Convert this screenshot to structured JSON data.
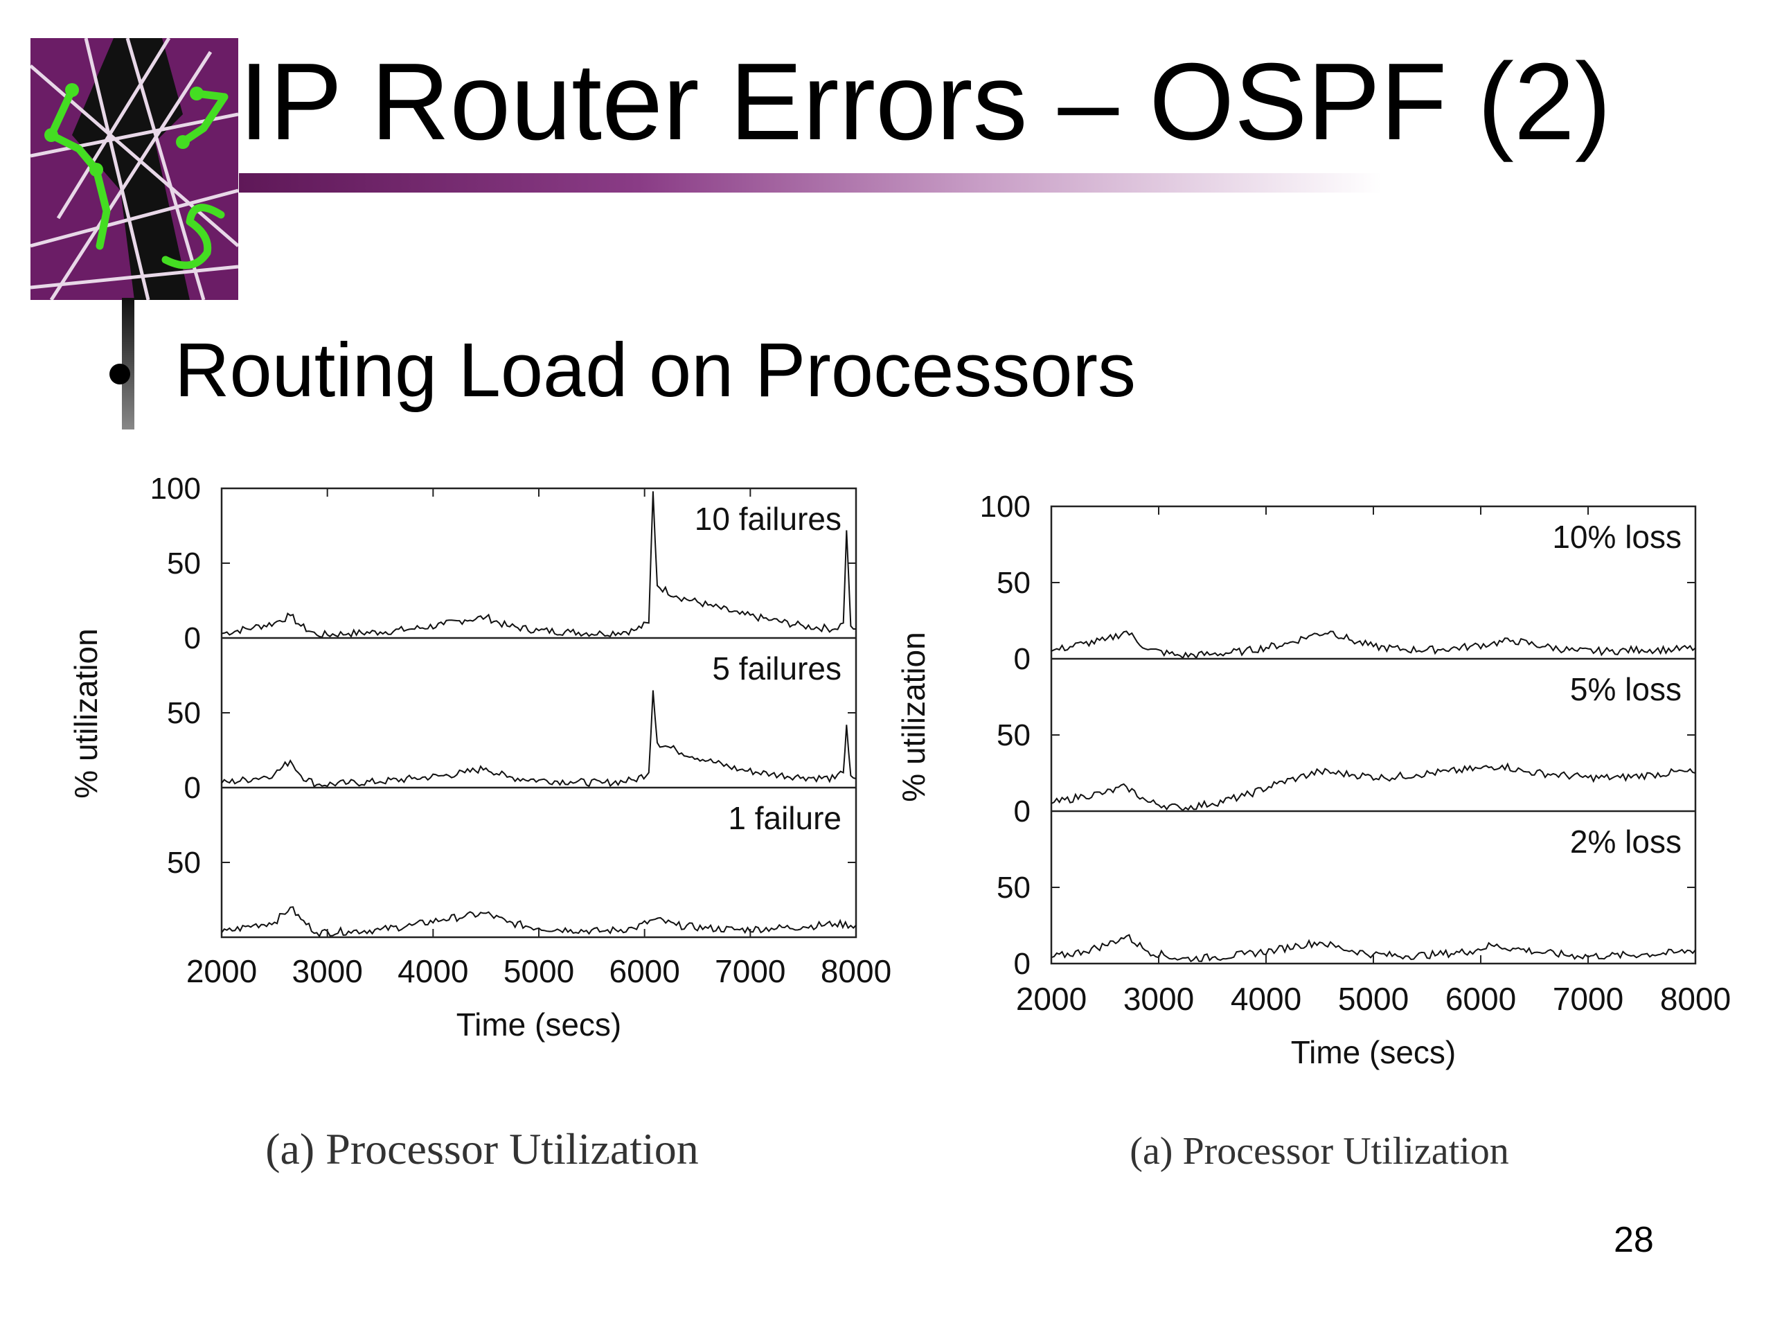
{
  "slide": {
    "title": "IP Router Errors – OSPF (2)",
    "bullet": "Routing Load on Processors",
    "page_number": "28",
    "colors": {
      "accent": "#6b1d66",
      "logo_green": "#44dd22",
      "title_bar": "#5f1858"
    }
  },
  "logo": {
    "icon": "ospf-network-logo-icon"
  },
  "chart_data": [
    {
      "type": "line",
      "caption": "(a) Processor Utilization",
      "xlabel": "Time (secs)",
      "ylabel": "% utilization",
      "xlim": [
        2000,
        8000
      ],
      "xticks": [
        2000,
        3000,
        4000,
        5000,
        6000,
        7000,
        8000
      ],
      "grid": false,
      "panels": [
        {
          "label": "10 failures",
          "ylim": [
            0,
            100
          ],
          "yticks": [
            0,
            50,
            100
          ],
          "x": [
            2000,
            2300,
            2500,
            2650,
            2750,
            2900,
            3200,
            3500,
            3800,
            4100,
            4300,
            4500,
            4700,
            5000,
            5300,
            5600,
            5900,
            6040,
            6080,
            6120,
            6300,
            6600,
            6900,
            7200,
            7500,
            7800,
            7880,
            7910,
            7950,
            8000
          ],
          "y": [
            3,
            7,
            10,
            15,
            8,
            2,
            3,
            4,
            6,
            9,
            12,
            14,
            8,
            5,
            4,
            3,
            5,
            10,
            98,
            35,
            28,
            22,
            16,
            12,
            8,
            6,
            10,
            72,
            8,
            6
          ]
        },
        {
          "label": "5 failures",
          "ylim": [
            0,
            100
          ],
          "yticks": [
            0,
            50
          ],
          "x": [
            2000,
            2300,
            2500,
            2650,
            2750,
            2900,
            3200,
            3500,
            3800,
            4100,
            4300,
            4500,
            4700,
            5000,
            5300,
            5600,
            5900,
            6040,
            6080,
            6120,
            6300,
            6600,
            6900,
            7200,
            7500,
            7800,
            7880,
            7910,
            7950,
            8000
          ],
          "y": [
            3,
            6,
            9,
            18,
            8,
            2,
            3,
            4,
            6,
            8,
            10,
            13,
            7,
            5,
            4,
            3,
            5,
            10,
            65,
            30,
            25,
            18,
            12,
            9,
            7,
            6,
            10,
            42,
            8,
            6
          ]
        },
        {
          "label": "1 failure",
          "ylim": [
            0,
            100
          ],
          "yticks": [
            50
          ],
          "x": [
            2000,
            2300,
            2500,
            2650,
            2750,
            2900,
            3200,
            3500,
            3800,
            4100,
            4300,
            4500,
            4700,
            5000,
            5300,
            5600,
            5900,
            6100,
            6300,
            6600,
            6900,
            7200,
            7500,
            7800,
            8000
          ],
          "y": [
            3,
            8,
            10,
            20,
            12,
            3,
            4,
            5,
            8,
            12,
            14,
            16,
            10,
            6,
            5,
            4,
            6,
            12,
            8,
            6,
            5,
            6,
            7,
            9,
            8
          ]
        }
      ]
    },
    {
      "type": "line",
      "caption": "(a) Processor Utilization",
      "xlabel": "Time (secs)",
      "ylabel": "% utilization",
      "xlim": [
        2000,
        8000
      ],
      "xticks": [
        2000,
        3000,
        4000,
        5000,
        6000,
        7000,
        8000
      ],
      "grid": false,
      "panels": [
        {
          "label": "10% loss",
          "ylim": [
            0,
            100
          ],
          "yticks": [
            0,
            50,
            100
          ],
          "x": [
            2000,
            2300,
            2500,
            2700,
            2900,
            3200,
            3500,
            3800,
            4200,
            4400,
            4600,
            4800,
            5000,
            5300,
            5600,
            5900,
            6100,
            6300,
            6600,
            6900,
            7200,
            7500,
            7800,
            8000
          ],
          "y": [
            5,
            10,
            12,
            18,
            6,
            2,
            3,
            5,
            10,
            15,
            18,
            12,
            8,
            6,
            6,
            8,
            10,
            12,
            8,
            5,
            5,
            6,
            6,
            7
          ]
        },
        {
          "label": "5% loss",
          "ylim": [
            0,
            100
          ],
          "yticks": [
            0,
            50
          ],
          "x": [
            2000,
            2300,
            2500,
            2700,
            2900,
            3200,
            3500,
            3800,
            4100,
            4300,
            4500,
            4800,
            5100,
            5400,
            5700,
            6000,
            6200,
            6400,
            6700,
            7000,
            7300,
            7600,
            7900,
            8000
          ],
          "y": [
            5,
            10,
            12,
            16,
            6,
            2,
            5,
            10,
            18,
            22,
            26,
            24,
            22,
            24,
            26,
            28,
            30,
            26,
            24,
            22,
            22,
            24,
            26,
            25
          ]
        },
        {
          "label": "2% loss",
          "ylim": [
            0,
            100
          ],
          "yticks": [
            0,
            50
          ],
          "x": [
            2000,
            2300,
            2500,
            2700,
            2900,
            3200,
            3500,
            3800,
            4100,
            4300,
            4500,
            4700,
            5000,
            5300,
            5600,
            5900,
            6100,
            6300,
            6600,
            6900,
            7200,
            7500,
            7800,
            8000
          ],
          "y": [
            4,
            8,
            12,
            18,
            8,
            3,
            4,
            6,
            9,
            12,
            14,
            10,
            6,
            5,
            6,
            8,
            12,
            10,
            7,
            5,
            5,
            6,
            7,
            9
          ]
        }
      ]
    }
  ]
}
